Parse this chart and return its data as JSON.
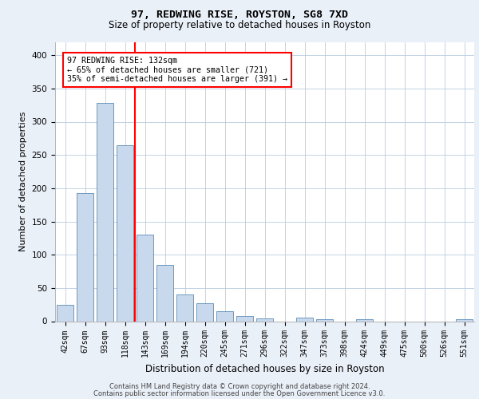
{
  "title1": "97, REDWING RISE, ROYSTON, SG8 7XD",
  "title2": "Size of property relative to detached houses in Royston",
  "xlabel": "Distribution of detached houses by size in Royston",
  "ylabel": "Number of detached properties",
  "categories": [
    "42sqm",
    "67sqm",
    "93sqm",
    "118sqm",
    "143sqm",
    "169sqm",
    "194sqm",
    "220sqm",
    "245sqm",
    "271sqm",
    "296sqm",
    "322sqm",
    "347sqm",
    "373sqm",
    "398sqm",
    "424sqm",
    "449sqm",
    "475sqm",
    "500sqm",
    "526sqm",
    "551sqm"
  ],
  "values": [
    25,
    193,
    328,
    265,
    130,
    85,
    40,
    27,
    15,
    8,
    4,
    0,
    5,
    3,
    0,
    3,
    0,
    0,
    0,
    0,
    3
  ],
  "bar_color": "#c9d9ed",
  "bar_edge_color": "#5b8db8",
  "vline_x": 3.5,
  "annotation_text": "97 REDWING RISE: 132sqm\n← 65% of detached houses are smaller (721)\n35% of semi-detached houses are larger (391) →",
  "annotation_box_color": "white",
  "annotation_box_edge_color": "red",
  "vline_color": "red",
  "footer1": "Contains HM Land Registry data © Crown copyright and database right 2024.",
  "footer2": "Contains public sector information licensed under the Open Government Licence v3.0.",
  "ylim": [
    0,
    420
  ],
  "bg_color": "#eaf0f8",
  "plot_bg_color": "white",
  "grid_color": "#b8cce0",
  "yticks": [
    0,
    50,
    100,
    150,
    200,
    250,
    300,
    350,
    400
  ],
  "title1_fontsize": 9.5,
  "title2_fontsize": 8.5,
  "ylabel_fontsize": 8,
  "xlabel_fontsize": 8.5,
  "tick_fontsize": 7,
  "footer_fontsize": 6.0
}
